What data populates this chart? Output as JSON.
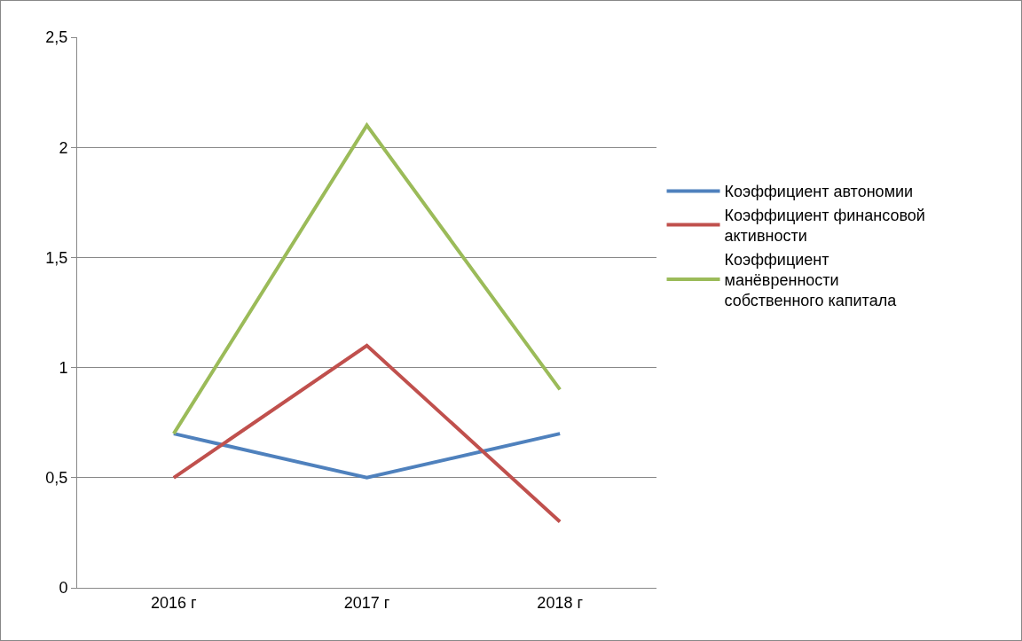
{
  "chart_data": {
    "type": "line",
    "categories": [
      "2016 г",
      "2017 г",
      "2018 г"
    ],
    "series": [
      {
        "name": "Коэффициент автономии",
        "color": "#4f81bd",
        "values": [
          0.7,
          0.5,
          0.7
        ]
      },
      {
        "name": "Коэффициент финансовой активности",
        "color": "#c0504d",
        "values": [
          0.5,
          1.1,
          0.3
        ]
      },
      {
        "name": "Коэффициент манёвренности собственного капитала",
        "color": "#9bbb59",
        "values": [
          0.7,
          2.1,
          0.9
        ]
      }
    ],
    "ylim": [
      0,
      2.5
    ],
    "yticks": [
      0,
      {
        "value": 0.5,
        "label": "0,5"
      },
      1,
      {
        "value": 1.5,
        "label": "1,5"
      },
      2,
      {
        "value": 2.5,
        "label": "2,5"
      }
    ],
    "grid": "y",
    "legend": "right",
    "marker": "none",
    "line_style": "solid"
  }
}
